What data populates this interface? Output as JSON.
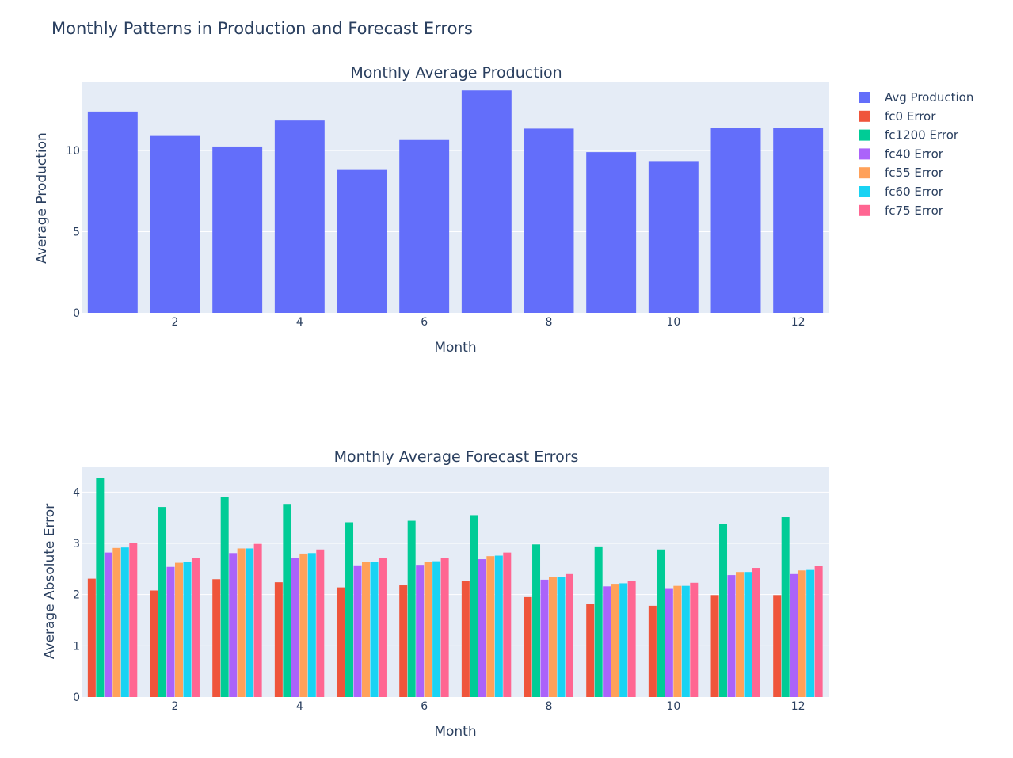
{
  "figure": {
    "title": "Monthly Patterns in Production and Forecast Errors"
  },
  "chart_data": [
    {
      "type": "bar",
      "title": "Monthly Average Production",
      "xlabel": "Month",
      "ylabel": "Average Production",
      "x": [
        1,
        2,
        3,
        4,
        5,
        6,
        7,
        8,
        9,
        10,
        11,
        12
      ],
      "x_ticks": [
        "2",
        "4",
        "6",
        "8",
        "10",
        "12"
      ],
      "y_ticks": [
        "0",
        "5",
        "10"
      ],
      "ylim": [
        0,
        14.2
      ],
      "series": [
        {
          "name": "Avg Production",
          "color": "#636efa",
          "values": [
            12.4,
            10.9,
            10.25,
            11.85,
            8.85,
            10.65,
            13.7,
            11.35,
            9.9,
            9.35,
            11.4,
            11.4
          ]
        }
      ]
    },
    {
      "type": "bar",
      "title": "Monthly Average Forecast Errors",
      "xlabel": "Month",
      "ylabel": "Average Absolute Error",
      "x": [
        1,
        2,
        3,
        4,
        5,
        6,
        7,
        8,
        9,
        10,
        11,
        12
      ],
      "x_ticks": [
        "2",
        "4",
        "6",
        "8",
        "10",
        "12"
      ],
      "y_ticks": [
        "0",
        "1",
        "2",
        "3",
        "4"
      ],
      "ylim": [
        0,
        4.5
      ],
      "series": [
        {
          "name": "fc0 Error",
          "color": "#ef553b",
          "values": [
            2.31,
            2.08,
            2.3,
            2.24,
            2.14,
            2.18,
            2.26,
            1.95,
            1.82,
            1.78,
            1.99,
            1.99
          ]
        },
        {
          "name": "fc1200 Error",
          "color": "#00cc96",
          "values": [
            4.27,
            3.71,
            3.91,
            3.77,
            3.41,
            3.44,
            3.55,
            2.98,
            2.94,
            2.88,
            3.38,
            3.51
          ]
        },
        {
          "name": "fc40 Error",
          "color": "#ab63fa",
          "values": [
            2.82,
            2.54,
            2.81,
            2.72,
            2.57,
            2.58,
            2.69,
            2.29,
            2.16,
            2.11,
            2.38,
            2.4
          ]
        },
        {
          "name": "fc55 Error",
          "color": "#ffa15a",
          "values": [
            2.91,
            2.62,
            2.9,
            2.8,
            2.64,
            2.64,
            2.75,
            2.34,
            2.21,
            2.17,
            2.44,
            2.47
          ]
        },
        {
          "name": "fc60 Error",
          "color": "#19d3f3",
          "values": [
            2.92,
            2.63,
            2.9,
            2.81,
            2.64,
            2.65,
            2.76,
            2.34,
            2.22,
            2.17,
            2.44,
            2.48
          ]
        },
        {
          "name": "fc75 Error",
          "color": "#ff6692",
          "values": [
            3.01,
            2.72,
            2.99,
            2.88,
            2.72,
            2.71,
            2.82,
            2.4,
            2.27,
            2.23,
            2.52,
            2.56
          ]
        }
      ]
    }
  ],
  "legend": {
    "placement": "top-right",
    "items": [
      {
        "label": "Avg Production",
        "color": "#636efa"
      },
      {
        "label": "fc0 Error",
        "color": "#ef553b"
      },
      {
        "label": "fc1200 Error",
        "color": "#00cc96"
      },
      {
        "label": "fc40 Error",
        "color": "#ab63fa"
      },
      {
        "label": "fc55 Error",
        "color": "#ffa15a"
      },
      {
        "label": "fc60 Error",
        "color": "#19d3f3"
      },
      {
        "label": "fc75 Error",
        "color": "#ff6692"
      }
    ]
  },
  "style": {
    "plot_bg": "#e5ecf6",
    "grid_color": "#ffffff",
    "text_color": "#2a3f5f"
  }
}
